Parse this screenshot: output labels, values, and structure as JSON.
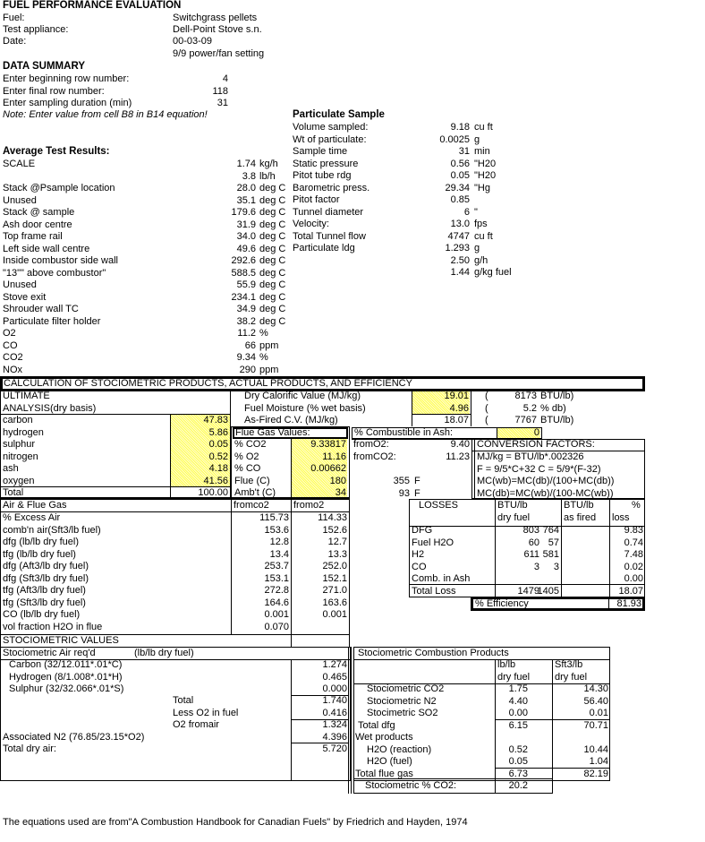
{
  "header": {
    "title": "FUEL PERFORMANCE EVALUATION",
    "fuel_label": "Fuel:",
    "fuel": "Switchgrass pellets",
    "appliance_label": "Test appliance:",
    "appliance": "Dell-Point Stove s.n.",
    "date_label": "Date:",
    "date": "00-03-09",
    "setting": "9/9 power/fan setting"
  },
  "data_summary": {
    "title": "DATA SUMMARY",
    "rows": [
      {
        "label": "Enter beginning row number:",
        "value": "4"
      },
      {
        "label": "Enter final row number:",
        "value": "118"
      },
      {
        "label": "Enter sampling duration (min)",
        "value": "31"
      }
    ],
    "note": "Note: Enter value from cell B8 in B14 equation!"
  },
  "particulate": {
    "title": "Particulate Sample",
    "rows": [
      {
        "label": "Volume sampled:",
        "value": "9.18",
        "unit": "cu ft"
      },
      {
        "label": "Wt of particulate:",
        "value": "0.0025",
        "unit": "g"
      },
      {
        "label": "Sample time",
        "value": "31",
        "unit": "min"
      },
      {
        "label": "Static pressure",
        "value": "0.56",
        "unit": "\"H20"
      },
      {
        "label": "Pitot tube rdg",
        "value": "0.05",
        "unit": "\"H20"
      },
      {
        "label": "Barometric press.",
        "value": "29.34",
        "unit": "\"Hg"
      },
      {
        "label": "Pitot factor",
        "value": "0.85",
        "unit": ""
      },
      {
        "label": "Tunnel diameter",
        "value": "6",
        "unit": "\""
      },
      {
        "label": "Velocity:",
        "value": "13.0",
        "unit": "fps"
      },
      {
        "label": "Total Tunnel flow",
        "value": "4747",
        "unit": "cu ft"
      },
      {
        "label": "Particulate ldg",
        "value": "1.293",
        "unit": "g"
      },
      {
        "label": "",
        "value": "2.50",
        "unit": "g/h"
      },
      {
        "label": "",
        "value": "1.44",
        "unit": "g/kg fuel"
      }
    ]
  },
  "avg": {
    "title": "Average Test Results:",
    "rows": [
      {
        "label": "SCALE",
        "value": "1.74",
        "unit": "kg/h"
      },
      {
        "label": "",
        "value": "3.8",
        "unit": "lb/h"
      },
      {
        "label": "Stack @Psample location",
        "value": "28.0",
        "unit": "deg C"
      },
      {
        "label": "Unused",
        "value": "35.1",
        "unit": "deg C"
      },
      {
        "label": "Stack @ sample",
        "value": "179.6",
        "unit": "deg C"
      },
      {
        "label": "Ash door centre",
        "value": "31.9",
        "unit": "deg C"
      },
      {
        "label": "Top frame rail",
        "value": "34.0",
        "unit": "deg C"
      },
      {
        "label": "Left side wall centre",
        "value": "49.6",
        "unit": "deg C"
      },
      {
        "label": "Inside combustor side wall",
        "value": "292.6",
        "unit": "deg C"
      },
      {
        "label": "\"13\"\" above combustor\"",
        "value": "588.5",
        "unit": "deg C"
      },
      {
        "label": "Unused",
        "value": "55.9",
        "unit": "deg C"
      },
      {
        "label": "Stove exit",
        "value": "234.1",
        "unit": "deg C"
      },
      {
        "label": "Shrouder wall TC",
        "value": "34.9",
        "unit": "deg C"
      },
      {
        "label": "Particulate filter holder",
        "value": "38.2",
        "unit": "deg C"
      },
      {
        "label": "O2",
        "value": "11.2",
        "unit": "%"
      },
      {
        "label": "CO",
        "value": "66",
        "unit": "ppm"
      },
      {
        "label": "CO2",
        "value": "9.34",
        "unit": "%"
      },
      {
        "label": "NOx",
        "value": "290",
        "unit": "ppm"
      }
    ]
  },
  "calc": {
    "title": "CALCULATION OF STOCIOMETRIC PRODUCTS, ACTUAL PRODUCTS, AND EFFICIENCY",
    "ultimate": {
      "h1": "ULTIMATE",
      "h2": "ANALYSIS(dry basis)",
      "rows": [
        {
          "label": "carbon",
          "value": "47.83"
        },
        {
          "label": "hydrogen",
          "value": "5.86"
        },
        {
          "label": "sulphur",
          "value": "0.05"
        },
        {
          "label": "nitrogen",
          "value": "0.52"
        },
        {
          "label": "ash",
          "value": "4.18"
        },
        {
          "label": "oxygen",
          "value": "41.56"
        }
      ],
      "total_label": "Total",
      "total": "100.00"
    },
    "calorific": [
      {
        "label": "Dry Calorific Value (MJ/kg)",
        "value": "19.01",
        "paren": "(",
        "alt": "8173",
        "unit": "BTU/lb)"
      },
      {
        "label": "Fuel Moisture (% wet basis)",
        "value": "4.96",
        "paren": "(",
        "alt": "5.2",
        "unit": "% db)"
      },
      {
        "label": "As-Fired C.V. (MJ/kg)",
        "value": "18.07",
        "paren": "(",
        "alt": "7767",
        "unit": "BTU/lb)"
      }
    ],
    "flue_gas": {
      "title": "Flue Gas Values:",
      "rows": [
        {
          "label": "% CO2",
          "value": "9.33817"
        },
        {
          "label": "% O2",
          "value": "11.16"
        },
        {
          "label": "% CO",
          "value": "0.00662"
        },
        {
          "label": "Flue (C)",
          "value": "180"
        },
        {
          "label": "Amb't (C)",
          "value": "34"
        }
      ]
    },
    "combustible": {
      "label": "% Combustible in Ash:",
      "value": "0"
    },
    "from": [
      {
        "label": "fromO2:",
        "value": "9.40"
      },
      {
        "label": "fromCO2:",
        "value": "11.23"
      }
    ],
    "temps_f": [
      {
        "value": "355",
        "unit": "F"
      },
      {
        "value": "93",
        "unit": "F"
      }
    ],
    "conversion": {
      "title": "CONVERSION FACTORS:",
      "lines": [
        "MJ/kg = BTU/lb*.002326",
        "F = 9/5*C+32    C = 5/9*(F-32)",
        "MC(wb)=MC(db)/(100+MC(db))",
        "MC(db)=MC(wb)/(100-MC(wb))"
      ]
    }
  },
  "air_flue": {
    "title": "Air & Flue Gas",
    "col1": "fromco2",
    "col2": "fromo2",
    "rows": [
      {
        "label": "% Excess Air",
        "co2": "115.73",
        "o2": "114.33"
      },
      {
        "label": "comb'n air(Sft3/lb fuel)",
        "co2": "153.6",
        "o2": "152.6"
      },
      {
        "label": "dfg (lb/lb dry fuel)",
        "co2": "12.8",
        "o2": "12.7"
      },
      {
        "label": "tfg (lb/lb dry fuel)",
        "co2": "13.4",
        "o2": "13.3"
      },
      {
        "label": "dfg (Aft3/lb dry fuel)",
        "co2": "253.7",
        "o2": "252.0"
      },
      {
        "label": "dfg (Sft3/lb dry fuel)",
        "co2": "153.1",
        "o2": "152.1"
      },
      {
        "label": "tfg (Aft3/lb dry fuel)",
        "co2": "272.8",
        "o2": "271.0"
      },
      {
        "label": "tfg (Sft3/lb dry fuel)",
        "co2": "164.6",
        "o2": "163.6"
      },
      {
        "label": "CO (lb/lb dry fuel)",
        "co2": "0.001",
        "o2": "0.001"
      },
      {
        "label": "vol fraction H2O in flue",
        "co2": "0.070",
        "o2": ""
      }
    ]
  },
  "losses": {
    "h_label": "LOSSES",
    "h_dry1": "BTU/lb",
    "h_dry2": "dry fuel",
    "h_fired1": "BTU/lb",
    "h_fired2": "as fired",
    "h_pct1": "%",
    "h_pct2": "loss",
    "rows": [
      {
        "label": "DFG",
        "dry": "803",
        "fired": "764",
        "pct": "9.83"
      },
      {
        "label": "Fuel H2O",
        "dry": "60",
        "fired": "57",
        "pct": "0.74"
      },
      {
        "label": "H2",
        "dry": "611",
        "fired": "581",
        "pct": "7.48"
      },
      {
        "label": "CO",
        "dry": "3",
        "fired": "3",
        "pct": "0.02"
      },
      {
        "label": "Comb. in Ash",
        "dry": "",
        "fired": "",
        "pct": "0.00"
      },
      {
        "label": "Total Loss",
        "dry": "1479",
        "fired": "1405",
        "pct": "18.07"
      }
    ],
    "efficiency_label": "% Efficiency",
    "efficiency": "81.93"
  },
  "stoich_values_title": "STOCIOMETRIC VALUES",
  "stoich_air": {
    "title": "Stociometric Air req'd",
    "unit": "(lb/lb dry fuel)",
    "rows": [
      {
        "label": "Carbon (32/12.011*.01*C)",
        "value": "1.274"
      },
      {
        "label": "Hydrogen (8/1.008*.01*H)",
        "value": "0.465"
      },
      {
        "label": "Sulphur (32/32.066*.01*S)",
        "value": "0.000"
      },
      {
        "label": "Total",
        "value": "1.740"
      },
      {
        "label": "Less O2 in fuel",
        "value": "0.416"
      },
      {
        "label": "O2 fromair",
        "value": "1.324"
      },
      {
        "label": "Associated N2 (76.85/23.15*O2)",
        "value": "4.396"
      },
      {
        "label": "Total dry air:",
        "value": "5.720"
      }
    ]
  },
  "stoich_products": {
    "title": "Stociometric Combustion Products",
    "h_lb1": "lb/lb",
    "h_lb2": "dry fuel",
    "h_sft1": "Sft3/lb",
    "h_sft2": "dry fuel",
    "rows": [
      {
        "label": "Stociometric CO2",
        "lb": "1.75",
        "sft": "14.30"
      },
      {
        "label": "Stociometric N2",
        "lb": "4.40",
        "sft": "56.40"
      },
      {
        "label": "Stocimetric SO2",
        "lb": "0.00",
        "sft": "0.01"
      },
      {
        "label": "Total dfg",
        "lb": "6.15",
        "sft": "70.71"
      },
      {
        "label": "Wet products",
        "lb": "",
        "sft": ""
      },
      {
        "label": "H2O (reaction)",
        "lb": "0.52",
        "sft": "10.44"
      },
      {
        "label": "H2O (fuel)",
        "lb": "0.05",
        "sft": "1.04"
      },
      {
        "label": "Total flue gas",
        "lb": "6.73",
        "sft": "82.19"
      }
    ],
    "pct_co2_label": "Stociometric % CO2:",
    "pct_co2": "20.2"
  },
  "footer": "The equations used are from\"A Combustion Handbook for Canadian Fuels\" by Friedrich and Hayden, 1974",
  "colors": {
    "input_cell": "#ffff55",
    "text": "#000000",
    "background": "#ffffff"
  }
}
